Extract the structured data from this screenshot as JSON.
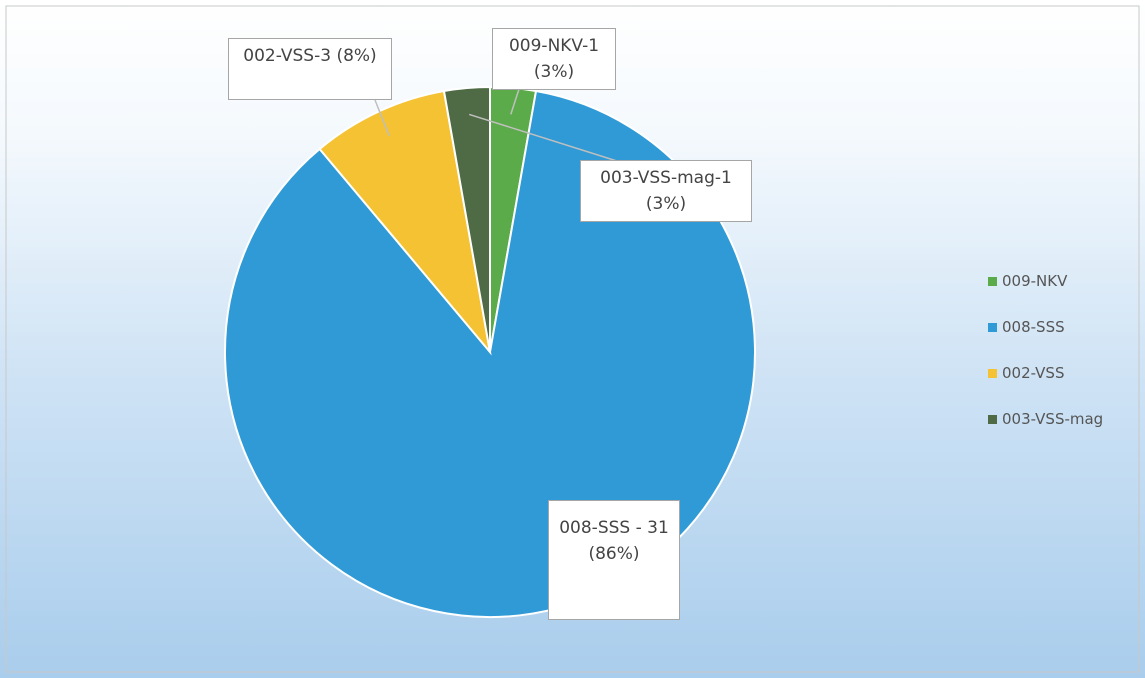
{
  "chart_data": {
    "type": "pie",
    "categories": [
      "009-NKV",
      "008-SSS",
      "002-VSS",
      "003-VSS-mag"
    ],
    "values": [
      1,
      31,
      3,
      1
    ],
    "value_labels": [
      "009-NKV-1 (3%)",
      "008-SSS - 31 (86%)",
      "002-VSS-3 (8%)",
      "003-VSS-mag-1 (3%)"
    ],
    "colors": [
      "#5cab4a",
      "#2f9ad6",
      "#f4c232",
      "#4f6b45"
    ],
    "legend": "right"
  }
}
